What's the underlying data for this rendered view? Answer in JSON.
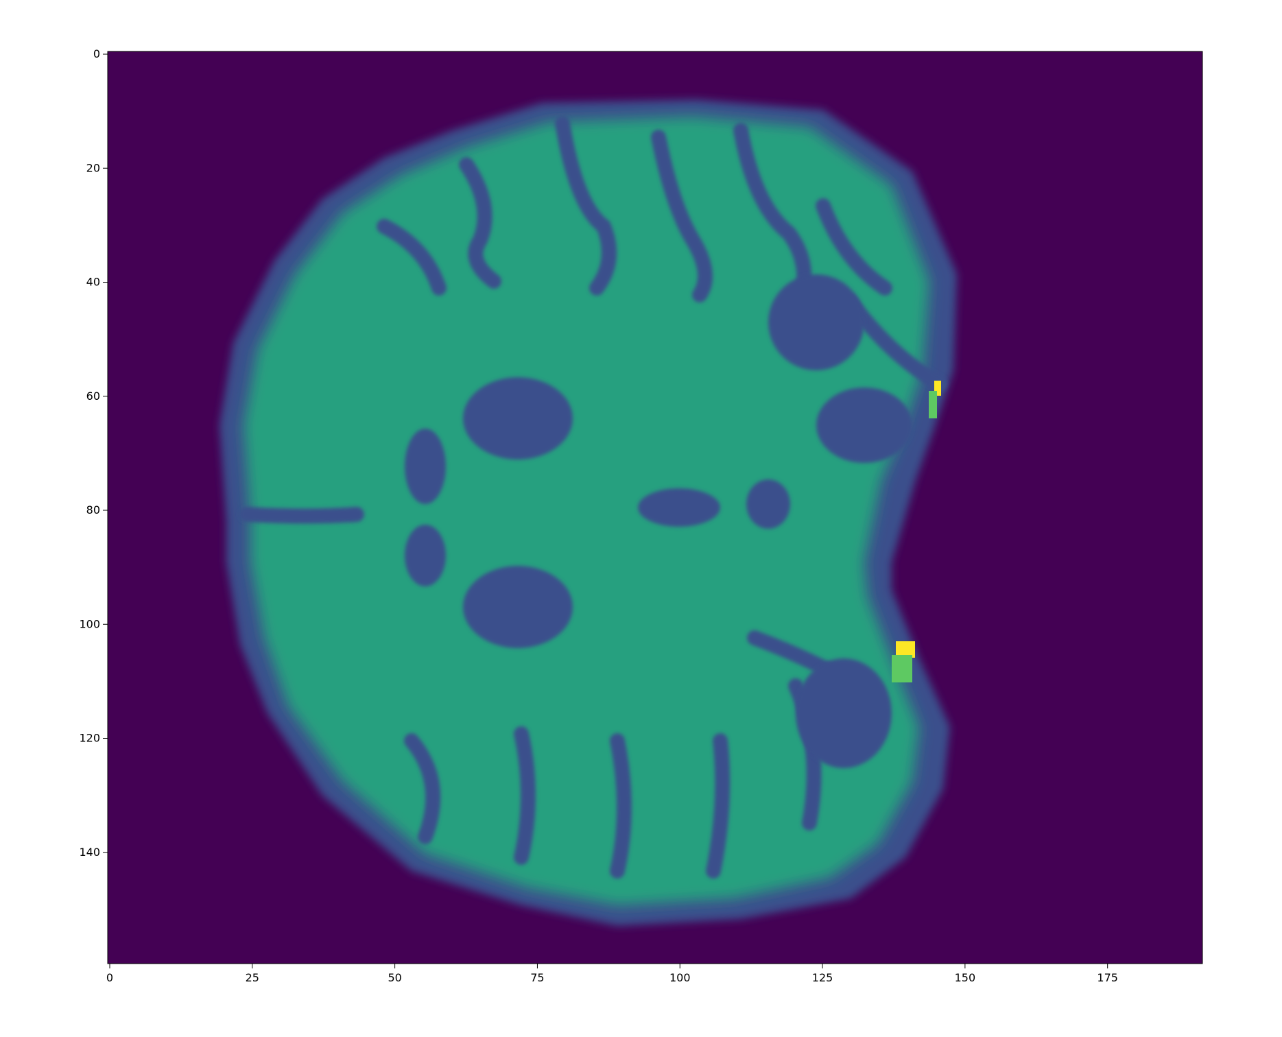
{
  "image": {
    "subject": "axial brain MRI slice",
    "colormap": "viridis",
    "background_color": "#440154",
    "tissue_color": "#26a07f",
    "dark_tissue_color": "#3b4f8c",
    "hotspot_color": "#fde725",
    "axis_color": "#000000"
  },
  "x_axis": {
    "range": [
      0,
      192
    ],
    "ticks": [
      {
        "value": 0,
        "label": "0"
      },
      {
        "value": 25,
        "label": "25"
      },
      {
        "value": 50,
        "label": "50"
      },
      {
        "value": 75,
        "label": "75"
      },
      {
        "value": 100,
        "label": "100"
      },
      {
        "value": 125,
        "label": "125"
      },
      {
        "value": 150,
        "label": "150"
      },
      {
        "value": 175,
        "label": "175"
      }
    ]
  },
  "y_axis": {
    "range": [
      0,
      160
    ],
    "inverted": true,
    "ticks": [
      {
        "value": 0,
        "label": "0"
      },
      {
        "value": 20,
        "label": "20"
      },
      {
        "value": 40,
        "label": "40"
      },
      {
        "value": 60,
        "label": "60"
      },
      {
        "value": 80,
        "label": "80"
      },
      {
        "value": 100,
        "label": "100"
      },
      {
        "value": 120,
        "label": "120"
      },
      {
        "value": 140,
        "label": "140"
      }
    ]
  }
}
